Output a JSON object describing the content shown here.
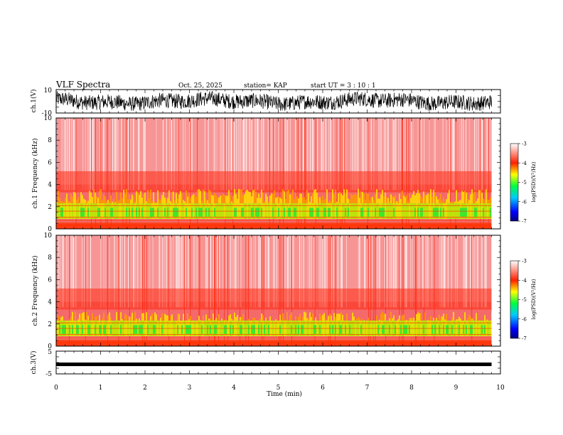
{
  "header": {
    "title": "VLF Spectra",
    "date": "Oct. 25, 2025",
    "station": "station= KAP",
    "start_time": "start  UT  =   3  : 10 : 1"
  },
  "chart_data": [
    {
      "type": "line",
      "name": "ch1-waveform",
      "ylabel": "ch.1(V)",
      "ylim": [
        -10,
        10
      ],
      "yticks": [
        "10",
        "-10"
      ],
      "xlim": [
        0,
        10
      ],
      "data_end": 9.8,
      "amplitude_range": [
        -8,
        9
      ]
    },
    {
      "type": "heatmap",
      "name": "ch1-spectrogram",
      "ylabel": "ch.1 Frequency (kHz)",
      "ylim": [
        0,
        10
      ],
      "yticks": [
        "0",
        "2",
        "4",
        "6",
        "8",
        "10"
      ],
      "xlim": [
        0,
        10
      ],
      "data_end": 9.8,
      "colorbar": {
        "label": "log(PSD)(V²/Hz)",
        "range": [
          -7,
          -3
        ],
        "ticks": [
          "-3",
          "-4",
          "-5",
          "-6",
          "-7"
        ]
      }
    },
    {
      "type": "heatmap",
      "name": "ch2-spectrogram",
      "ylabel": "ch.2 Frequency (kHz)",
      "ylim": [
        0,
        10
      ],
      "yticks": [
        "0",
        "2",
        "4",
        "6",
        "8",
        "10"
      ],
      "xlim": [
        0,
        10
      ],
      "data_end": 9.8,
      "colorbar": {
        "label": "log(PSD)(V²/Hz)",
        "range": [
          -7,
          -3
        ],
        "ticks": [
          "-3",
          "-4",
          "-5",
          "-6",
          "-7"
        ]
      }
    },
    {
      "type": "line",
      "name": "ch3-waveform",
      "ylabel": "ch.3(V)",
      "ylim": [
        -5,
        5
      ],
      "yticks": [
        "5",
        "-5"
      ],
      "xlim": [
        0,
        10
      ],
      "data_end": 9.8,
      "constant_value": -0.8
    }
  ],
  "x_axis": {
    "label": "Time  (min)",
    "ticks": [
      "0",
      "1",
      "2",
      "3",
      "4",
      "5",
      "6",
      "7",
      "8",
      "9",
      "10"
    ]
  }
}
